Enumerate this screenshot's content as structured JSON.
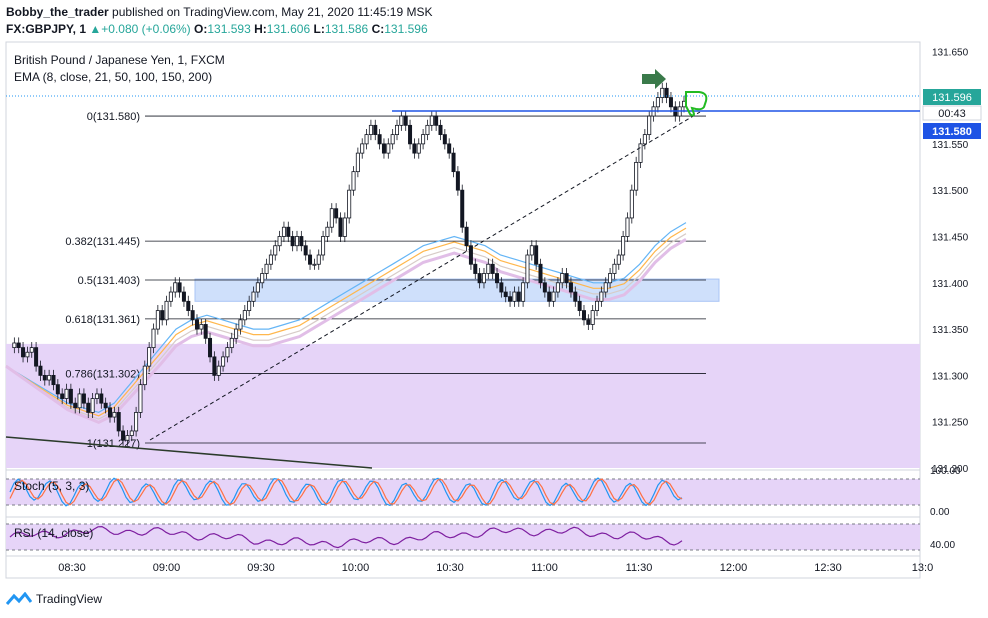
{
  "header": {
    "author": "Bobby_the_trader",
    "published_text": "published on TradingView.com, May 21, 2020 11:45:19 MSK",
    "symbol": "FX:GBPJPY, 1",
    "change": "+0.080 (+0.06%)",
    "o_label": "O:",
    "o_value": "131.593",
    "h_label": "H:",
    "h_value": "131.606",
    "l_label": "L:",
    "l_value": "131.586",
    "c_label": "C:",
    "c_value": "131.596"
  },
  "legend": {
    "title": "British Pound / Japanese Yen, 1, FXCM",
    "ema": "EMA (8, close, 21, 50, 100, 150, 200)"
  },
  "colors": {
    "up": "#26a69a",
    "candle": "#131722",
    "zone_purple": "#e6d4f8",
    "zone_blue": "#cfe0fb",
    "price_label": "#1e53e5",
    "fib_line": "#131722",
    "stoch_k": "#2196f3",
    "stoch_d": "#ff7043",
    "rsi": "#7e1fa0"
  },
  "chart_data": {
    "type": "candlestick",
    "x_ticks": [
      "08:30",
      "09:00",
      "09:30",
      "10:00",
      "10:30",
      "11:00",
      "11:30",
      "12:00",
      "12:30",
      "13:0"
    ],
    "y_ticks": [
      "131.650",
      "131.600",
      "131.550",
      "131.500",
      "131.450",
      "131.400",
      "131.350",
      "131.300",
      "131.250",
      "131.200"
    ],
    "ylim": [
      131.2,
      131.66
    ],
    "last_price": "131.596",
    "countdown": "00:43",
    "level_price": "131.580",
    "fib_levels": [
      {
        "label": "0(131.580)",
        "price": 131.58
      },
      {
        "label": "0.382(131.445)",
        "price": 131.445
      },
      {
        "label": "0.5(131.403)",
        "price": 131.403
      },
      {
        "label": "0.618(131.361)",
        "price": 131.361
      },
      {
        "label": "0.786(131.302)",
        "price": 131.302
      },
      {
        "label": "1(131.227)",
        "price": 131.227
      }
    ],
    "zones": [
      {
        "name": "demand-zone-purple",
        "top": 131.334,
        "bottom": 131.2
      },
      {
        "name": "support-zone-blue",
        "top": 131.404,
        "bottom": 131.38
      }
    ],
    "close_path": [
      131.33,
      131.335,
      131.33,
      131.32,
      131.325,
      131.33,
      131.31,
      131.3,
      131.295,
      131.3,
      131.29,
      131.28,
      131.275,
      131.285,
      131.27,
      131.265,
      131.28,
      131.27,
      131.26,
      131.275,
      131.28,
      131.27,
      131.265,
      131.255,
      131.26,
      131.24,
      131.23,
      131.235,
      131.24,
      131.26,
      131.29,
      131.31,
      131.33,
      131.35,
      131.37,
      131.36,
      131.38,
      131.39,
      131.4,
      131.39,
      131.38,
      131.37,
      131.36,
      131.35,
      131.355,
      131.34,
      131.32,
      131.3,
      131.31,
      131.32,
      131.33,
      131.34,
      131.35,
      131.36,
      131.37,
      131.38,
      131.39,
      131.4,
      131.41,
      131.42,
      131.43,
      131.44,
      131.45,
      131.46,
      131.45,
      131.44,
      131.45,
      131.44,
      131.43,
      131.42,
      131.42,
      131.43,
      131.45,
      131.46,
      131.48,
      131.47,
      131.45,
      131.47,
      131.5,
      131.52,
      131.54,
      131.55,
      131.56,
      131.57,
      131.56,
      131.55,
      131.54,
      131.55,
      131.56,
      131.57,
      131.58,
      131.57,
      131.55,
      131.54,
      131.55,
      131.56,
      131.57,
      131.58,
      131.57,
      131.56,
      131.55,
      131.54,
      131.52,
      131.5,
      131.46,
      131.44,
      131.42,
      131.41,
      131.4,
      131.41,
      131.42,
      131.41,
      131.4,
      131.39,
      131.385,
      131.38,
      131.39,
      131.38,
      131.4,
      131.43,
      131.44,
      131.42,
      131.4,
      131.39,
      131.38,
      131.39,
      131.4,
      131.41,
      131.4,
      131.39,
      131.38,
      131.37,
      131.36,
      131.355,
      131.37,
      131.38,
      131.39,
      131.4,
      131.41,
      131.42,
      131.43,
      131.45,
      131.47,
      131.5,
      131.53,
      131.55,
      131.56,
      131.58,
      131.59,
      131.6,
      131.61,
      131.6,
      131.59,
      131.58,
      131.59,
      131.596
    ],
    "ema_fast": [
      131.31,
      131.3,
      131.29,
      131.28,
      131.27,
      131.265,
      131.26,
      131.27,
      131.29,
      131.31,
      131.33,
      131.35,
      131.36,
      131.365,
      131.36,
      131.355,
      131.35,
      131.35,
      131.355,
      131.36,
      131.37,
      131.38,
      131.39,
      131.4,
      131.41,
      131.42,
      131.43,
      131.44,
      131.445,
      131.45,
      131.445,
      131.44,
      131.43,
      131.425,
      131.42,
      131.415,
      131.41,
      131.405,
      131.4,
      131.4,
      131.405,
      131.42,
      131.44,
      131.455,
      131.465
    ],
    "trendline_points": [
      [
        131.227,
        0
      ],
      [
        131.59,
        1
      ]
    ],
    "stoch": {
      "label": "Stoch (5, 3, 3)",
      "ticks": [
        "100.00",
        "0.00"
      ]
    },
    "rsi": {
      "label": "RSI (14, close)",
      "ticks": [
        "40.00"
      ]
    }
  },
  "footer": {
    "brand": "TradingView"
  }
}
